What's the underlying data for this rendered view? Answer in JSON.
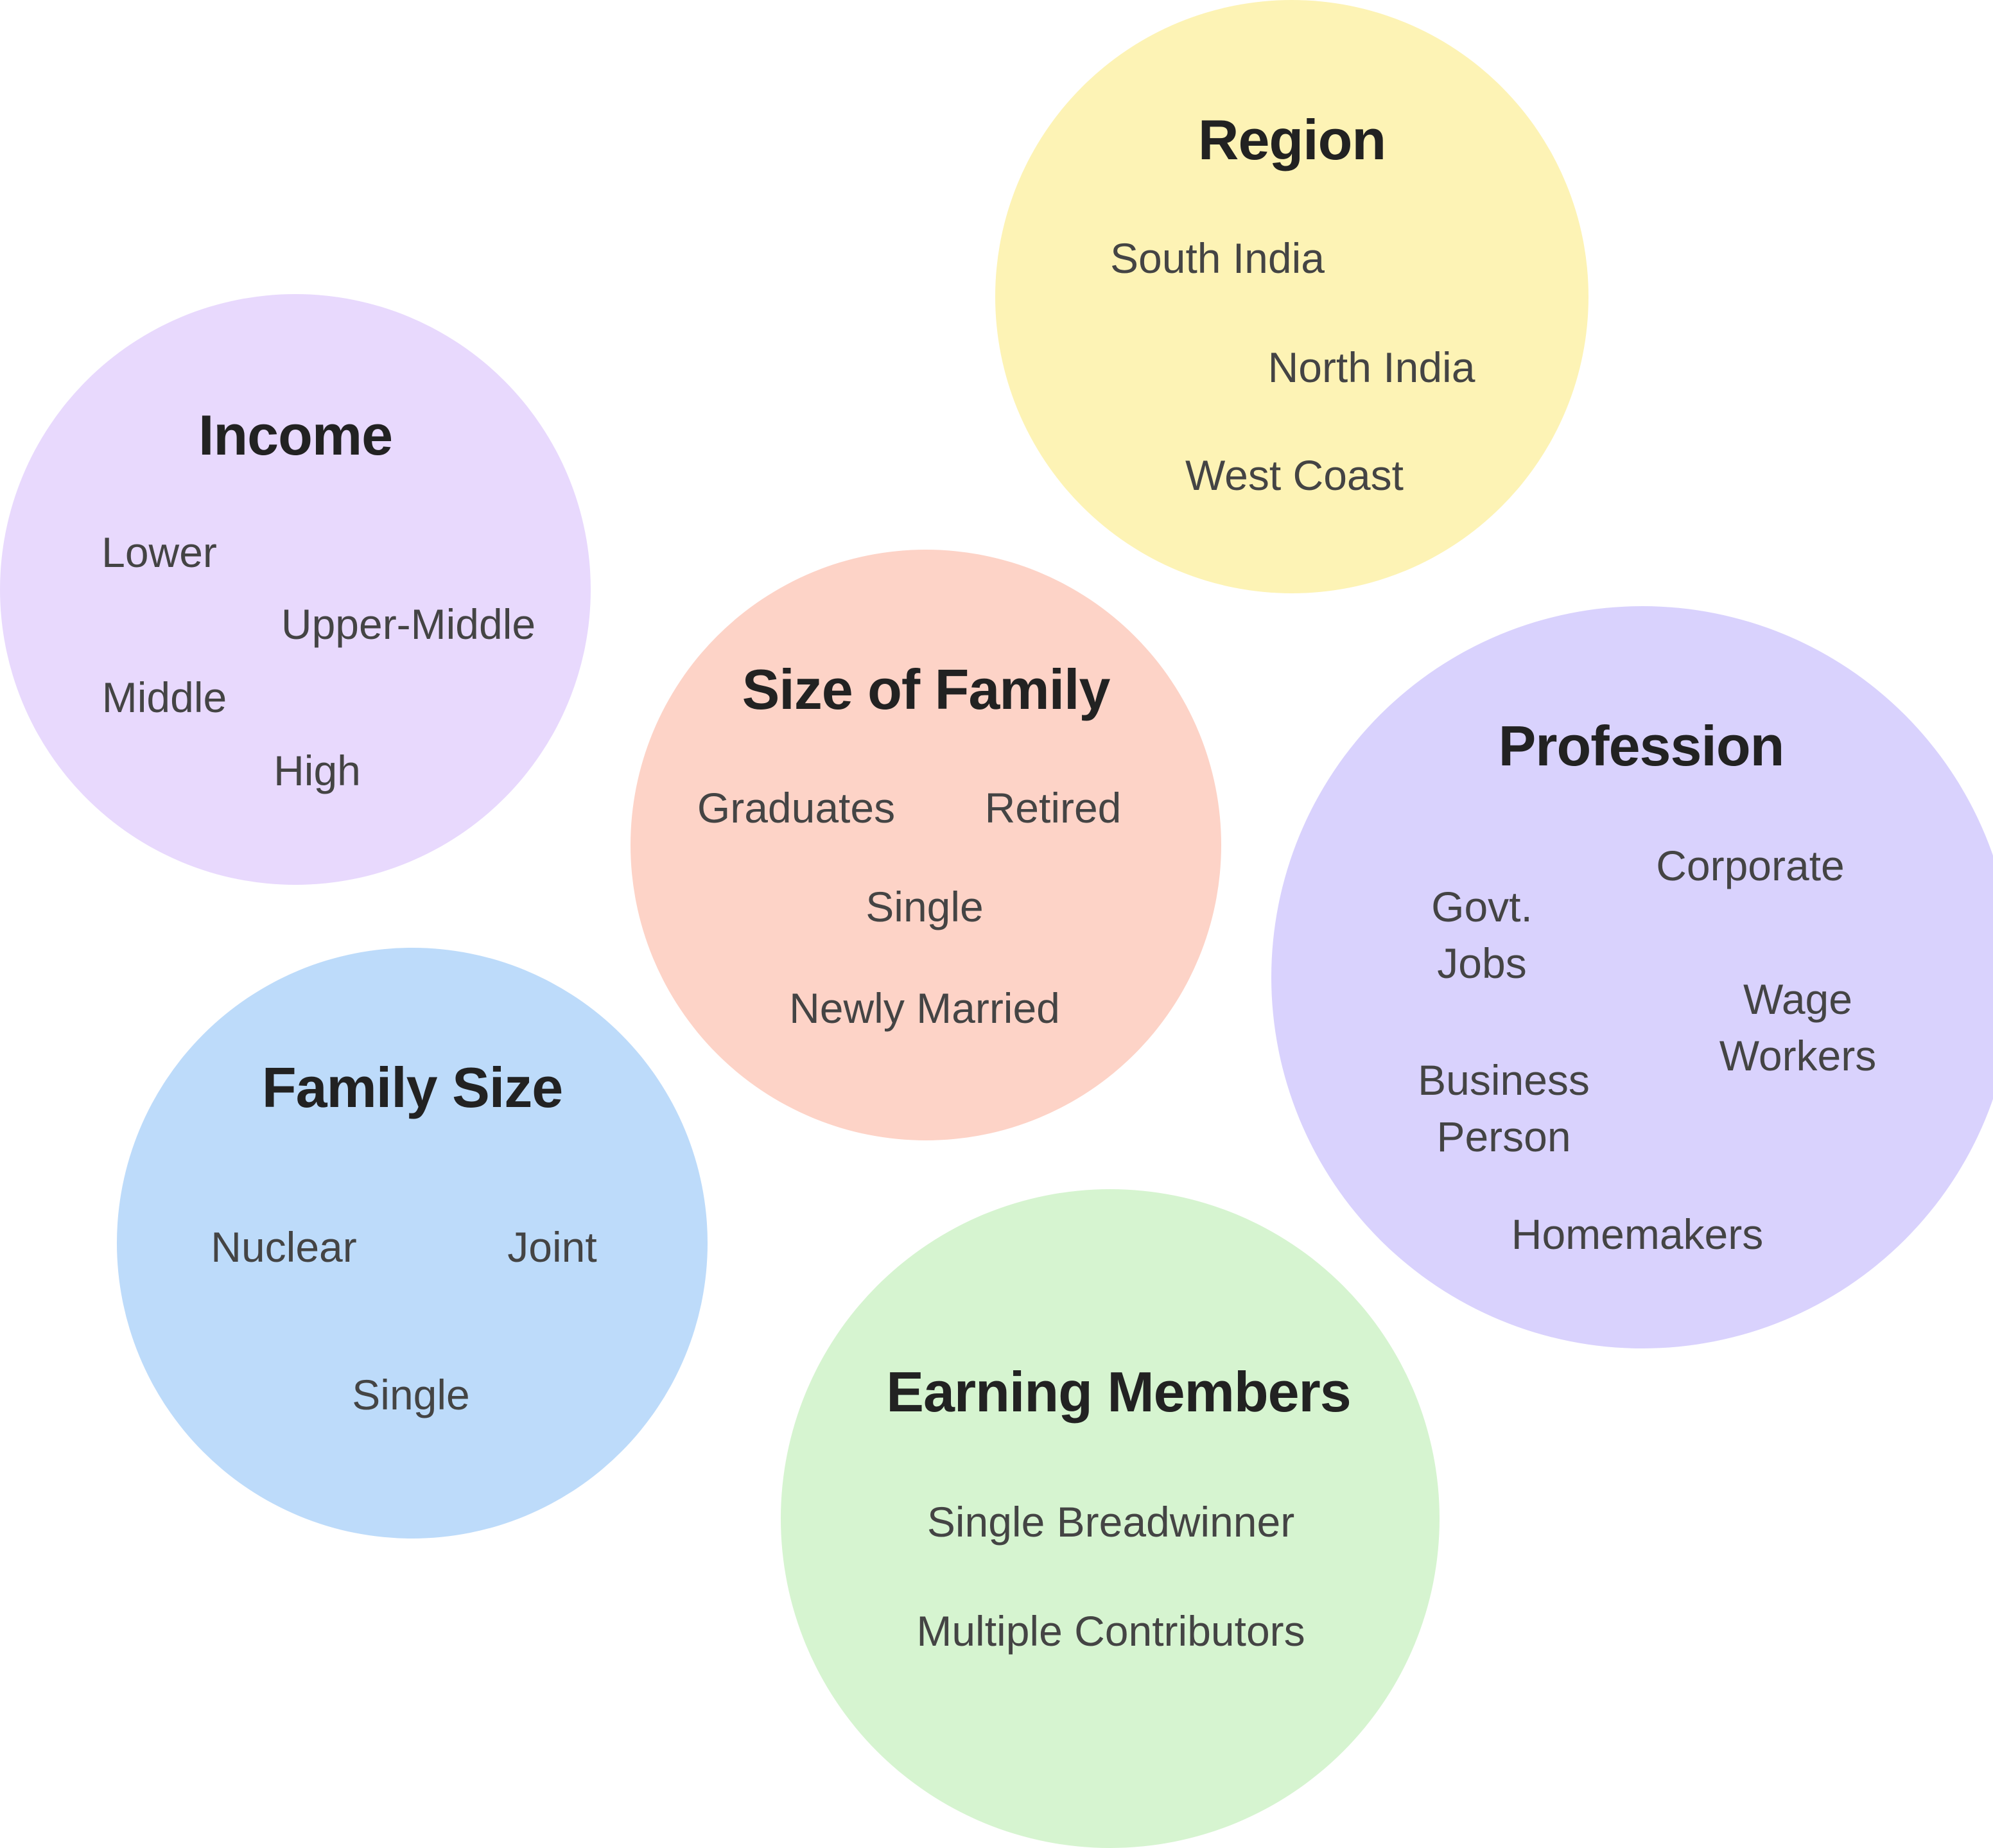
{
  "colors": {
    "income": "#e8d9fd",
    "region": "#fdf3b5",
    "size_of_family": "#fdd3c7",
    "profession": "#d9d2fd",
    "family_size": "#bddbfa",
    "earning_members": "#d6f4d0"
  },
  "income": {
    "title": "Income",
    "items": [
      "Lower",
      "Upper-Middle",
      "Middle",
      "High"
    ]
  },
  "region": {
    "title": "Region",
    "items": [
      "South India",
      "North India",
      "West Coast"
    ]
  },
  "size_of_family": {
    "title": "Size of Family",
    "items": [
      "Graduates",
      "Retired",
      "Single",
      "Newly Married"
    ]
  },
  "profession": {
    "title": "Profession",
    "items": [
      "Corporate",
      "Govt.\nJobs",
      "Wage\nWorkers",
      "Business\nPerson",
      "Homemakers"
    ]
  },
  "family_size": {
    "title": "Family Size",
    "items": [
      "Nuclear",
      "Joint",
      "Single"
    ]
  },
  "earning_members": {
    "title": "Earning Members",
    "items": [
      "Single Breadwinner",
      "Multiple Contributors"
    ]
  }
}
